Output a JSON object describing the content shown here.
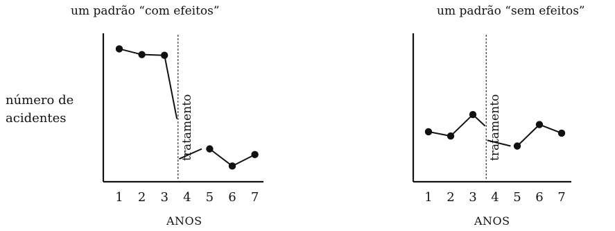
{
  "ylabel_lines": [
    "número de",
    "acidentes"
  ],
  "chart_data": [
    {
      "type": "line",
      "title": "um padrão “com efeitos”",
      "xlabel": "ANOS",
      "ylabel": "número de acidentes",
      "x": [
        1,
        2,
        3,
        4,
        5,
        6,
        7
      ],
      "series": [
        {
          "x": [
            1,
            2,
            3
          ],
          "values": [
            9.3,
            8.9,
            8.85
          ]
        },
        {
          "x": [
            5,
            6,
            7
          ],
          "values": [
            2.3,
            1.1,
            1.9
          ]
        }
      ],
      "intervention": {
        "x": 3.6,
        "label": "tratamento",
        "segments": [
          [
            3,
            8.85,
            3.55,
            4.4
          ],
          [
            3.65,
            1.6,
            4.65,
            2.3
          ]
        ]
      },
      "ylim": [
        0,
        10
      ]
    },
    {
      "type": "line",
      "title": "um padrão “sem efeitos”",
      "xlabel": "ANOS",
      "ylabel": "",
      "x": [
        1,
        2,
        3,
        4,
        5,
        6,
        7
      ],
      "series": [
        {
          "x": [
            1,
            2,
            3
          ],
          "values": [
            3.5,
            3.2,
            4.7
          ]
        },
        {
          "x": [
            5,
            6,
            7
          ],
          "values": [
            2.5,
            4.0,
            3.4
          ]
        }
      ],
      "intervention": {
        "x": 3.6,
        "label": "tratamento",
        "segments": [
          [
            3,
            4.7,
            3.55,
            3.9
          ],
          [
            3.65,
            2.9,
            4.7,
            2.5
          ]
        ]
      },
      "ylim": [
        0,
        10
      ]
    }
  ]
}
